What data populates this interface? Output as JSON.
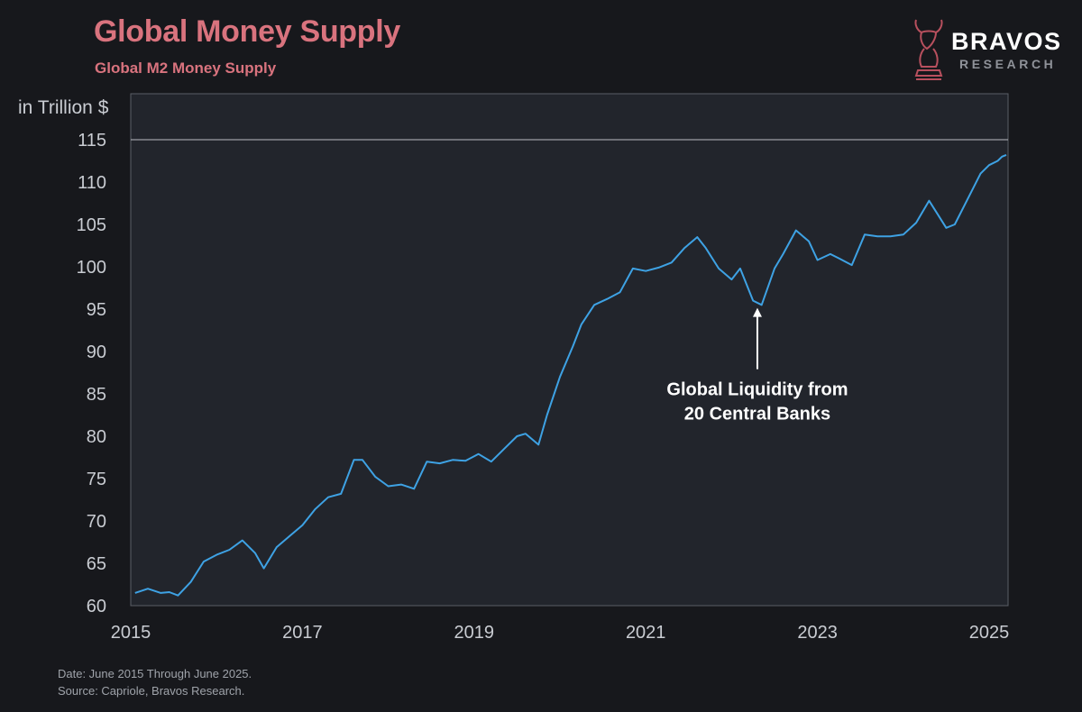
{
  "header": {
    "title": "Global Money Supply",
    "subtitle": "Global M2 Money Supply"
  },
  "logo": {
    "name": "BRAVOS",
    "tagline": "RESEARCH",
    "icon": "bull-chess-knight-icon"
  },
  "colors": {
    "background": "#17181c",
    "plot_background": "#22252c",
    "accent": "#d9737e",
    "line": "#3ea2e4",
    "text": "#c9ccd2"
  },
  "chart_data": {
    "type": "line",
    "title": "Global Money Supply",
    "subtitle": "Global M2 Money Supply",
    "ylabel": "in Trillion $",
    "xlabel": "",
    "ylim": [
      60,
      115
    ],
    "xlim": [
      2015,
      2025
    ],
    "y_ticks": [
      "60",
      "65",
      "70",
      "75",
      "80",
      "85",
      "90",
      "95",
      "100",
      "105",
      "110",
      "115"
    ],
    "x_ticks": [
      "2015",
      "2017",
      "2019",
      "2021",
      "2023",
      "2025"
    ],
    "grid": false,
    "legend": "none",
    "series": [
      {
        "x": [
          2015.05,
          2015.2,
          2015.35,
          2015.45,
          2015.55,
          2015.7,
          2015.85,
          2016.0,
          2016.15,
          2016.3,
          2016.45,
          2016.55,
          2016.7,
          2016.85,
          2017.0,
          2017.15,
          2017.3,
          2017.45,
          2017.6,
          2017.7,
          2017.85,
          2018.0,
          2018.15,
          2018.3,
          2018.45,
          2018.6,
          2018.75,
          2018.9,
          2019.05,
          2019.2,
          2019.35,
          2019.5,
          2019.6,
          2019.75,
          2019.85,
          2020.0,
          2020.15,
          2020.25,
          2020.4,
          2020.55,
          2020.7,
          2020.85,
          2021.0,
          2021.15,
          2021.3,
          2021.45,
          2021.6,
          2021.7,
          2021.85,
          2022.0,
          2022.1,
          2022.25,
          2022.35,
          2022.5,
          2022.6,
          2022.75,
          2022.9,
          2023.0,
          2023.15,
          2023.25,
          2023.4,
          2023.55,
          2023.7,
          2023.85,
          2024.0,
          2024.15,
          2024.3,
          2024.4,
          2024.5,
          2024.6,
          2024.75,
          2024.9,
          2025.0,
          2025.1,
          2025.15,
          2025.2
        ],
        "values": [
          61.5,
          62.0,
          61.5,
          61.6,
          61.2,
          62.8,
          65.2,
          66.0,
          66.6,
          67.7,
          66.2,
          64.4,
          66.9,
          68.2,
          69.5,
          71.4,
          72.8,
          73.2,
          77.2,
          77.2,
          75.2,
          74.1,
          74.3,
          73.8,
          77.0,
          76.8,
          77.2,
          77.1,
          77.9,
          77.0,
          78.5,
          80.0,
          80.3,
          79.0,
          82.5,
          87.0,
          90.6,
          93.2,
          95.5,
          96.2,
          97.0,
          99.8,
          99.5,
          99.9,
          100.5,
          102.2,
          103.5,
          102.2,
          99.8,
          98.5,
          99.8,
          96.0,
          95.5,
          99.8,
          101.5,
          104.3,
          103.0,
          100.8,
          101.5,
          101.0,
          100.2,
          103.8,
          103.6,
          103.6,
          103.8,
          105.2,
          107.8,
          106.2,
          104.6,
          105.0,
          108.0,
          111.0,
          112.0,
          112.5,
          113.0,
          113.2
        ]
      }
    ],
    "annotations": [
      {
        "line1": "Global Liquidity from",
        "line2": "20 Central Banks",
        "x": 2022.3,
        "y": 96.0
      }
    ]
  },
  "footer": {
    "date_line": "Date: June 2015 Through June 2025.",
    "source_line": "Source: Capriole, Bravos Research."
  }
}
